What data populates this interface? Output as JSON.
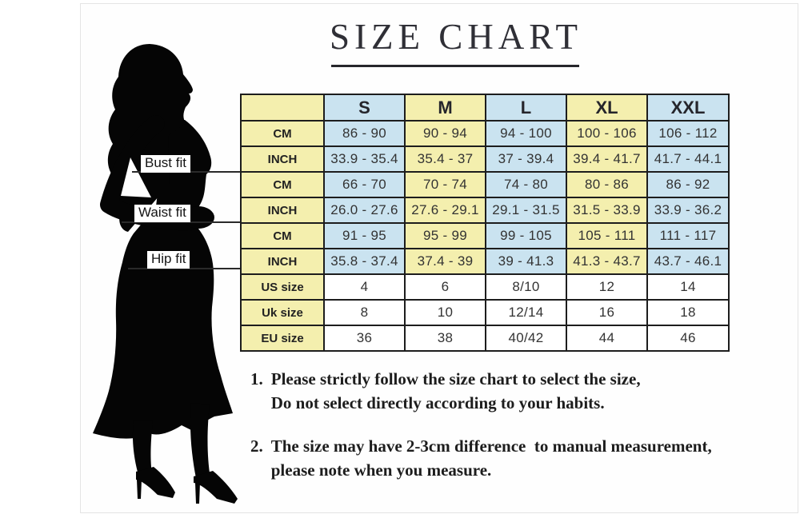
{
  "title": {
    "text": "SIZE CHART"
  },
  "figure": {
    "bust_label": "Bust fit",
    "waist_label": "Waist fit",
    "hip_label": "Hip fit"
  },
  "table": {
    "sizes": [
      "S",
      "M",
      "L",
      "XL",
      "XXL"
    ],
    "rows": [
      {
        "label": "CM",
        "group": "bust",
        "colored": true,
        "values": [
          "86 - 90",
          "90 - 94",
          "94 - 100",
          "100 - 106",
          "106 - 112"
        ]
      },
      {
        "label": "INCH",
        "group": "bust",
        "colored": true,
        "values": [
          "33.9 - 35.4",
          "35.4 - 37",
          "37 - 39.4",
          "39.4 - 41.7",
          "41.7 - 44.1"
        ]
      },
      {
        "label": "CM",
        "group": "waist",
        "colored": true,
        "values": [
          "66 - 70",
          "70 - 74",
          "74 - 80",
          "80 - 86",
          "86 - 92"
        ]
      },
      {
        "label": "INCH",
        "group": "waist",
        "colored": true,
        "values": [
          "26.0 - 27.6",
          "27.6 - 29.1",
          "29.1 - 31.5",
          "31.5 - 33.9",
          "33.9 - 36.2"
        ]
      },
      {
        "label": "CM",
        "group": "hip",
        "colored": true,
        "values": [
          "91 - 95",
          "95 - 99",
          "99 - 105",
          "105 - 111",
          "111 - 117"
        ]
      },
      {
        "label": "INCH",
        "group": "hip",
        "colored": true,
        "values": [
          "35.8 - 37.4",
          "37.4 - 39",
          "39 - 41.3",
          "41.3 - 43.7",
          "43.7 - 46.1"
        ]
      },
      {
        "label": "US size",
        "group": "size",
        "colored": false,
        "values": [
          "4",
          "6",
          "8/10",
          "12",
          "14"
        ]
      },
      {
        "label": "Uk size",
        "group": "size",
        "colored": false,
        "values": [
          "8",
          "10",
          "12/14",
          "16",
          "18"
        ]
      },
      {
        "label": "EU size",
        "group": "size",
        "colored": false,
        "values": [
          "36",
          "38",
          "40/42",
          "44",
          "46"
        ]
      }
    ]
  },
  "notes": [
    {
      "number": "1.",
      "lines": "Please strictly follow the size chart to select the size,\nDo not select directly according to your habits."
    },
    {
      "number": "2.",
      "lines": "The size may have 2-3cm difference  to manual measurement,\nplease note when you measure."
    }
  ],
  "colors": {
    "label_bg": "#f4efae",
    "column_alt": [
      "#cae3f0",
      "#f4efae",
      "#cae3f0",
      "#f4efae",
      "#cae3f0"
    ],
    "plain_bg": "#ffffff",
    "border": "#1d1d1d",
    "silhouette": "#050505"
  }
}
